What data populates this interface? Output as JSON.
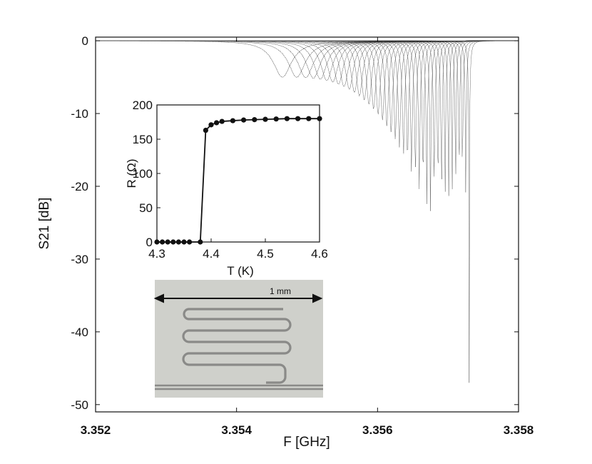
{
  "chart_data": [
    {
      "type": "line",
      "xlabel": "F [GHz]",
      "ylabel": "S21 [dB]",
      "xlim": [
        3.352,
        3.358
      ],
      "ylim": [
        -51,
        0.5
      ],
      "xticks": [
        3.352,
        3.354,
        3.356,
        3.358
      ],
      "xtick_labels": [
        "3.352",
        "3.354",
        "3.356",
        "3.358"
      ],
      "yticks": [
        0,
        -10,
        -20,
        -30,
        -40,
        -50
      ],
      "ytick_labels": [
        "0",
        "-10",
        "-20",
        "-30",
        "-40",
        "-50"
      ],
      "grid": false,
      "series_count": 40,
      "resonance_dips": {
        "first": {
          "f0": 3.35465,
          "depth_db": -5.0
        },
        "last": {
          "f0": 3.3573,
          "depth_db": -47.0
        }
      },
      "line_color": "#222222"
    },
    {
      "type": "line",
      "xlabel": "T (K)",
      "ylabel": "R (Ω)",
      "xlim": [
        4.3,
        4.6
      ],
      "ylim": [
        0,
        200
      ],
      "xticks": [
        4.3,
        4.4,
        4.5,
        4.6
      ],
      "xtick_labels": [
        "4.3",
        "4.4",
        "4.5",
        "4.6"
      ],
      "yticks": [
        0,
        50,
        100,
        150,
        200
      ],
      "ytick_labels": [
        "0",
        "50",
        "100",
        "150",
        "200"
      ],
      "x": [
        4.3,
        4.31,
        4.32,
        4.33,
        4.34,
        4.35,
        4.36,
        4.38,
        4.39,
        4.4,
        4.41,
        4.42,
        4.44,
        4.46,
        4.48,
        4.5,
        4.52,
        4.54,
        4.56,
        4.58,
        4.6
      ],
      "y": [
        0,
        0,
        0,
        0,
        0,
        0,
        0,
        0,
        163,
        171,
        174,
        176,
        177,
        178,
        178.5,
        179,
        179.5,
        180,
        180,
        180,
        180
      ],
      "marker": "circle",
      "line_color": "#111111"
    }
  ],
  "photo": {
    "scale_label": "1 mm",
    "background_color": "#cfd0cb",
    "trace_color": "#8a8a88"
  }
}
